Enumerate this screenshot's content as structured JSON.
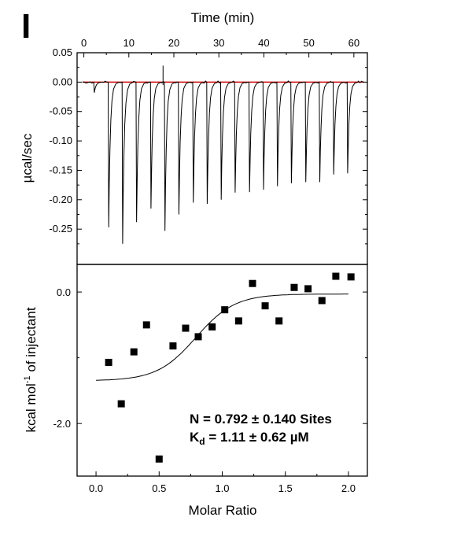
{
  "panel_letter": "I",
  "chart_data": [
    {
      "type": "line",
      "xlabel": "Time (min)",
      "ylabel": "µcal/sec",
      "xlim": [
        -1.5,
        63
      ],
      "ylim": [
        -0.31,
        0.05
      ],
      "x_ticks": [
        0,
        10,
        20,
        30,
        40,
        50,
        60
      ],
      "x_tick_labels": [
        "0",
        "10",
        "20",
        "30",
        "40",
        "50",
        "60"
      ],
      "y_ticks": [
        0.05,
        0.0,
        -0.05,
        -0.1,
        -0.15,
        -0.2,
        -0.25
      ],
      "y_tick_labels": [
        "0.05",
        "0.00",
        "-0.05",
        "-0.10",
        "-0.15",
        "-0.20",
        "-0.25"
      ],
      "x_axis_position": "top",
      "injections": [
        {
          "time": 2.2,
          "peak": -0.018
        },
        {
          "time": 5.4,
          "peak": -0.247
        },
        {
          "time": 8.5,
          "peak": -0.275
        },
        {
          "time": 11.6,
          "peak": -0.238
        },
        {
          "time": 14.8,
          "peak": -0.215
        },
        {
          "time": 17.9,
          "peak": -0.253
        },
        {
          "time": 21.0,
          "peak": -0.225
        },
        {
          "time": 24.2,
          "peak": -0.205
        },
        {
          "time": 27.3,
          "peak": -0.207
        },
        {
          "time": 30.4,
          "peak": -0.2
        },
        {
          "time": 33.5,
          "peak": -0.188
        },
        {
          "time": 36.7,
          "peak": -0.187
        },
        {
          "time": 39.8,
          "peak": -0.183
        },
        {
          "time": 42.9,
          "peak": -0.177
        },
        {
          "time": 46.0,
          "peak": -0.172
        },
        {
          "time": 49.2,
          "peak": -0.17
        },
        {
          "time": 52.3,
          "peak": -0.17
        },
        {
          "time": 55.4,
          "peak": -0.157
        },
        {
          "time": 58.5,
          "peak": -0.155
        }
      ],
      "artifact_spike": {
        "time": 17.6,
        "value": 0.028
      },
      "baseline_color": "#cc0000",
      "trace_color": "#000000"
    },
    {
      "type": "scatter",
      "xlabel": "Molar Ratio",
      "ylabel": "kcal mol-1 of injectant",
      "ylabel_parts": {
        "pre": "kcal mol",
        "sup": "-1",
        "post": " of injectant"
      },
      "xlim": [
        -0.15,
        2.15
      ],
      "ylim": [
        -2.8,
        0.42
      ],
      "x_ticks": [
        0.0,
        0.5,
        1.0,
        1.5,
        2.0
      ],
      "x_tick_labels": [
        "0.0",
        "0.5",
        "1.0",
        "1.5",
        "2.0"
      ],
      "y_ticks": [
        0.0,
        -2.0
      ],
      "y_tick_labels": [
        "0.0",
        "-2.0"
      ],
      "points": [
        {
          "x": 0.1,
          "y": -1.07
        },
        {
          "x": 0.2,
          "y": -1.7
        },
        {
          "x": 0.3,
          "y": -0.91
        },
        {
          "x": 0.4,
          "y": -0.5
        },
        {
          "x": 0.5,
          "y": -2.54
        },
        {
          "x": 0.61,
          "y": -0.82
        },
        {
          "x": 0.71,
          "y": -0.55
        },
        {
          "x": 0.81,
          "y": -0.68
        },
        {
          "x": 0.92,
          "y": -0.53
        },
        {
          "x": 1.02,
          "y": -0.27
        },
        {
          "x": 1.13,
          "y": -0.44
        },
        {
          "x": 1.24,
          "y": 0.13
        },
        {
          "x": 1.34,
          "y": -0.21
        },
        {
          "x": 1.45,
          "y": -0.44
        },
        {
          "x": 1.57,
          "y": 0.07
        },
        {
          "x": 1.68,
          "y": 0.05
        },
        {
          "x": 1.79,
          "y": -0.13
        },
        {
          "x": 1.9,
          "y": 0.24
        },
        {
          "x": 2.02,
          "y": 0.23
        }
      ],
      "fit": {
        "n": 0.792,
        "kd_um": 1.11,
        "bottom": -1.35,
        "top": -0.03,
        "steepness": 13
      },
      "annotations": {
        "n_line": "N = 0.792 ± 0.140 Sites",
        "kd_sym": "K",
        "kd_sub": "d",
        "kd_rest": " = 1.11 ± 0.62 µM"
      }
    }
  ]
}
